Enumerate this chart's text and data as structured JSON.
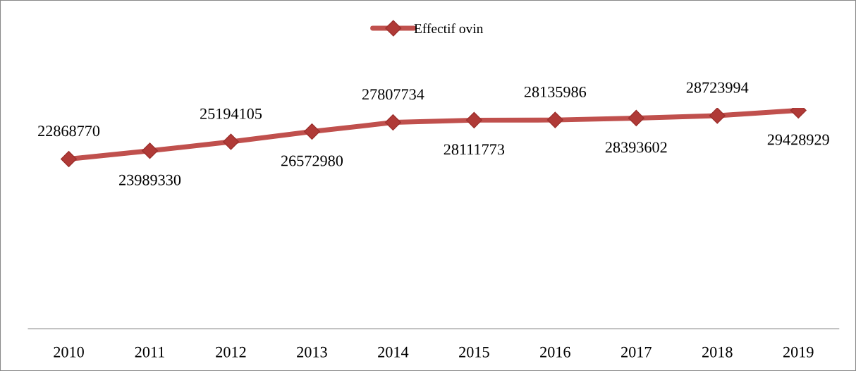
{
  "chart_data": {
    "type": "line",
    "categories": [
      "2010",
      "2011",
      "2012",
      "2013",
      "2014",
      "2015",
      "2016",
      "2017",
      "2018",
      "2019"
    ],
    "series": [
      {
        "name": "Effectif ovin",
        "color": "#c0504d",
        "values": [
          22868770,
          23989330,
          25194105,
          26572980,
          27807734,
          28111773,
          28135986,
          28393602,
          28723994,
          29428929
        ]
      }
    ],
    "data_labels": true,
    "marker": "diamond",
    "line_style": "solid",
    "legend": "top",
    "grid": false
  }
}
